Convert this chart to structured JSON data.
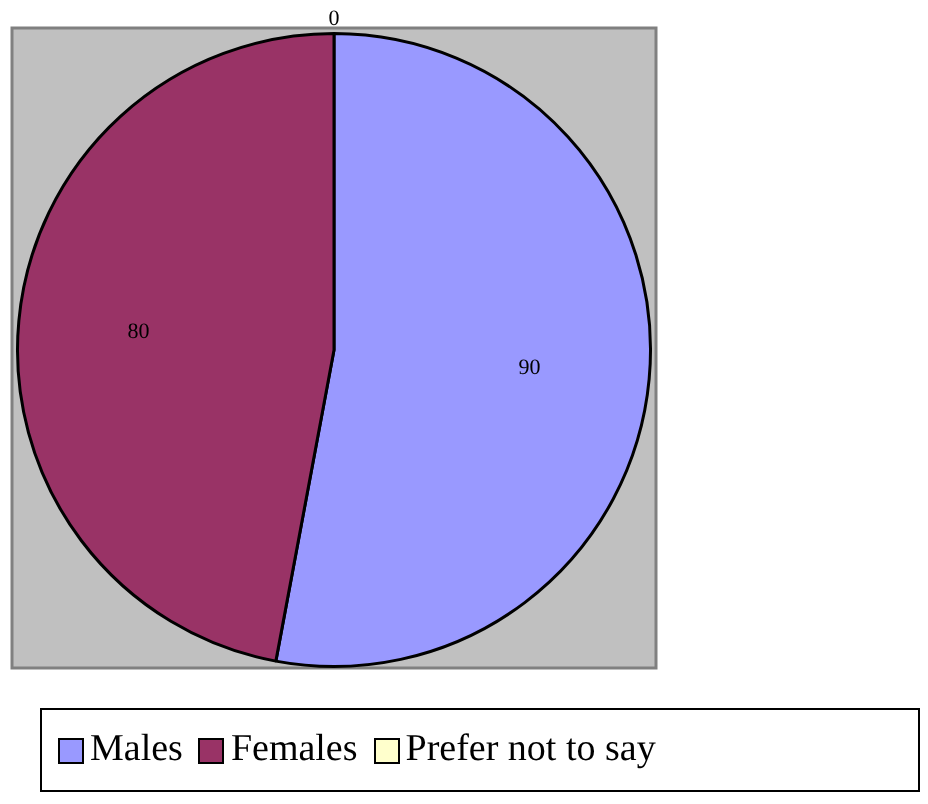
{
  "chart_data": {
    "type": "pie",
    "categories": [
      "Males",
      "Females",
      "Prefer not to say"
    ],
    "values": [
      90,
      80,
      0
    ],
    "colors": [
      "#9999ff",
      "#993366",
      "#ffffcc"
    ],
    "value_labels": [
      "90",
      "80",
      "0"
    ],
    "legend": "bottom"
  }
}
